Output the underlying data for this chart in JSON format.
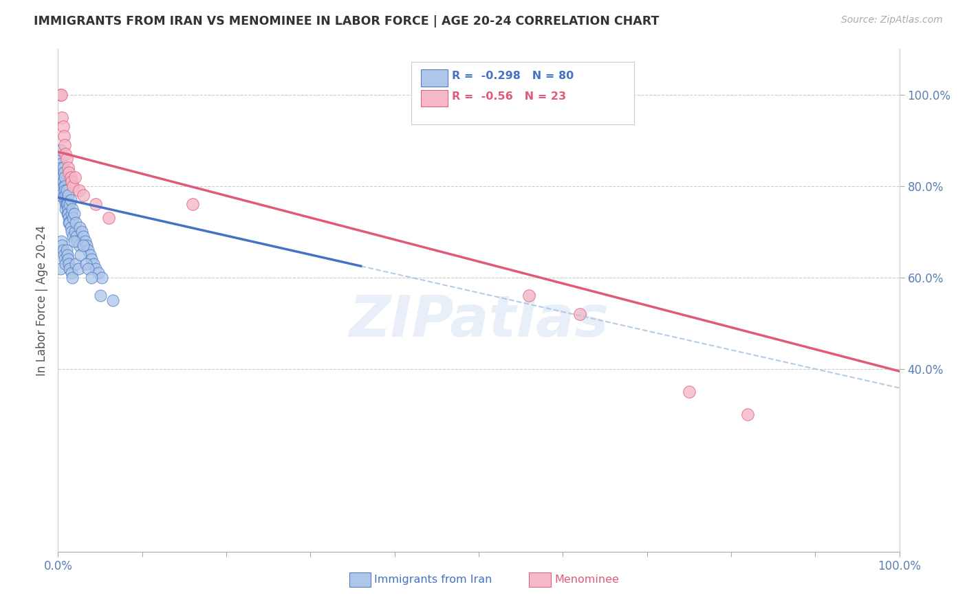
{
  "title": "IMMIGRANTS FROM IRAN VS MENOMINEE IN LABOR FORCE | AGE 20-24 CORRELATION CHART",
  "source": "Source: ZipAtlas.com",
  "ylabel": "In Labor Force | Age 20-24",
  "xmin": 0.0,
  "xmax": 1.0,
  "ymin": 0.0,
  "ymax": 1.1,
  "r_iran": -0.298,
  "n_iran": 80,
  "r_menominee": -0.56,
  "n_menominee": 23,
  "color_iran": "#aec6e8",
  "color_menominee": "#f4b8c8",
  "color_iran_line": "#4472c4",
  "color_menominee_line": "#e05a7a",
  "color_dashed": "#a8c4e0",
  "background_color": "#ffffff",
  "watermark": "ZIPatlas",
  "iran_line_x0": 0.0,
  "iran_line_x1": 0.36,
  "iran_line_y0": 0.775,
  "iran_line_y1": 0.625,
  "men_line_x0": 0.0,
  "men_line_x1": 1.0,
  "men_line_y0": 0.875,
  "men_line_y1": 0.395,
  "iran_x": [
    0.002,
    0.003,
    0.003,
    0.004,
    0.004,
    0.005,
    0.005,
    0.006,
    0.006,
    0.007,
    0.007,
    0.007,
    0.008,
    0.008,
    0.008,
    0.008,
    0.009,
    0.009,
    0.009,
    0.01,
    0.01,
    0.01,
    0.011,
    0.011,
    0.012,
    0.012,
    0.012,
    0.013,
    0.013,
    0.014,
    0.014,
    0.015,
    0.015,
    0.016,
    0.016,
    0.017,
    0.018,
    0.018,
    0.019,
    0.02,
    0.021,
    0.022,
    0.023,
    0.025,
    0.026,
    0.028,
    0.03,
    0.032,
    0.034,
    0.036,
    0.038,
    0.04,
    0.042,
    0.045,
    0.048,
    0.052,
    0.003,
    0.004,
    0.005,
    0.006,
    0.007,
    0.008,
    0.009,
    0.01,
    0.011,
    0.012,
    0.013,
    0.014,
    0.016,
    0.017,
    0.019,
    0.021,
    0.024,
    0.027,
    0.03,
    0.033,
    0.036,
    0.04,
    0.05,
    0.065
  ],
  "iran_y": [
    0.78,
    0.86,
    0.88,
    0.85,
    0.84,
    0.83,
    0.82,
    0.81,
    0.84,
    0.83,
    0.78,
    0.8,
    0.82,
    0.8,
    0.79,
    0.77,
    0.76,
    0.75,
    0.78,
    0.77,
    0.76,
    0.79,
    0.74,
    0.76,
    0.75,
    0.74,
    0.78,
    0.73,
    0.72,
    0.76,
    0.72,
    0.71,
    0.77,
    0.7,
    0.74,
    0.75,
    0.73,
    0.69,
    0.74,
    0.7,
    0.72,
    0.69,
    0.68,
    0.67,
    0.71,
    0.7,
    0.69,
    0.68,
    0.67,
    0.66,
    0.65,
    0.64,
    0.63,
    0.62,
    0.61,
    0.6,
    0.62,
    0.68,
    0.67,
    0.66,
    0.65,
    0.64,
    0.63,
    0.66,
    0.65,
    0.64,
    0.63,
    0.62,
    0.61,
    0.6,
    0.68,
    0.63,
    0.62,
    0.65,
    0.67,
    0.63,
    0.62,
    0.6,
    0.56,
    0.55
  ],
  "men_x": [
    0.003,
    0.004,
    0.005,
    0.006,
    0.007,
    0.008,
    0.009,
    0.01,
    0.012,
    0.013,
    0.015,
    0.016,
    0.018,
    0.02,
    0.025,
    0.03,
    0.045,
    0.06,
    0.16,
    0.56,
    0.62,
    0.75,
    0.82
  ],
  "men_y": [
    1.0,
    1.0,
    0.95,
    0.93,
    0.91,
    0.89,
    0.87,
    0.86,
    0.84,
    0.83,
    0.82,
    0.81,
    0.8,
    0.82,
    0.79,
    0.78,
    0.76,
    0.73,
    0.76,
    0.56,
    0.52,
    0.35,
    0.3
  ]
}
